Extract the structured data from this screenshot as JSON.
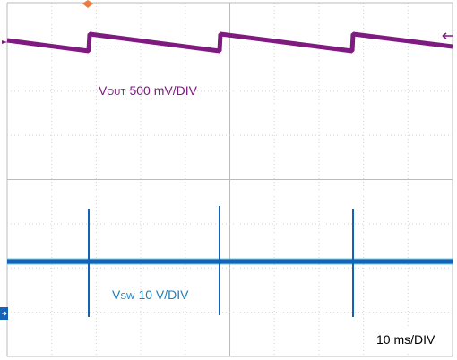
{
  "traces": {
    "vout": {
      "symbol": "V",
      "subscript": "OUT",
      "scale": "500 mV/DIV"
    },
    "vsw": {
      "symbol": "V",
      "subscript": "SW",
      "scale": "10 V/DIV"
    }
  },
  "timebase": "10 ms/DIV"
}
